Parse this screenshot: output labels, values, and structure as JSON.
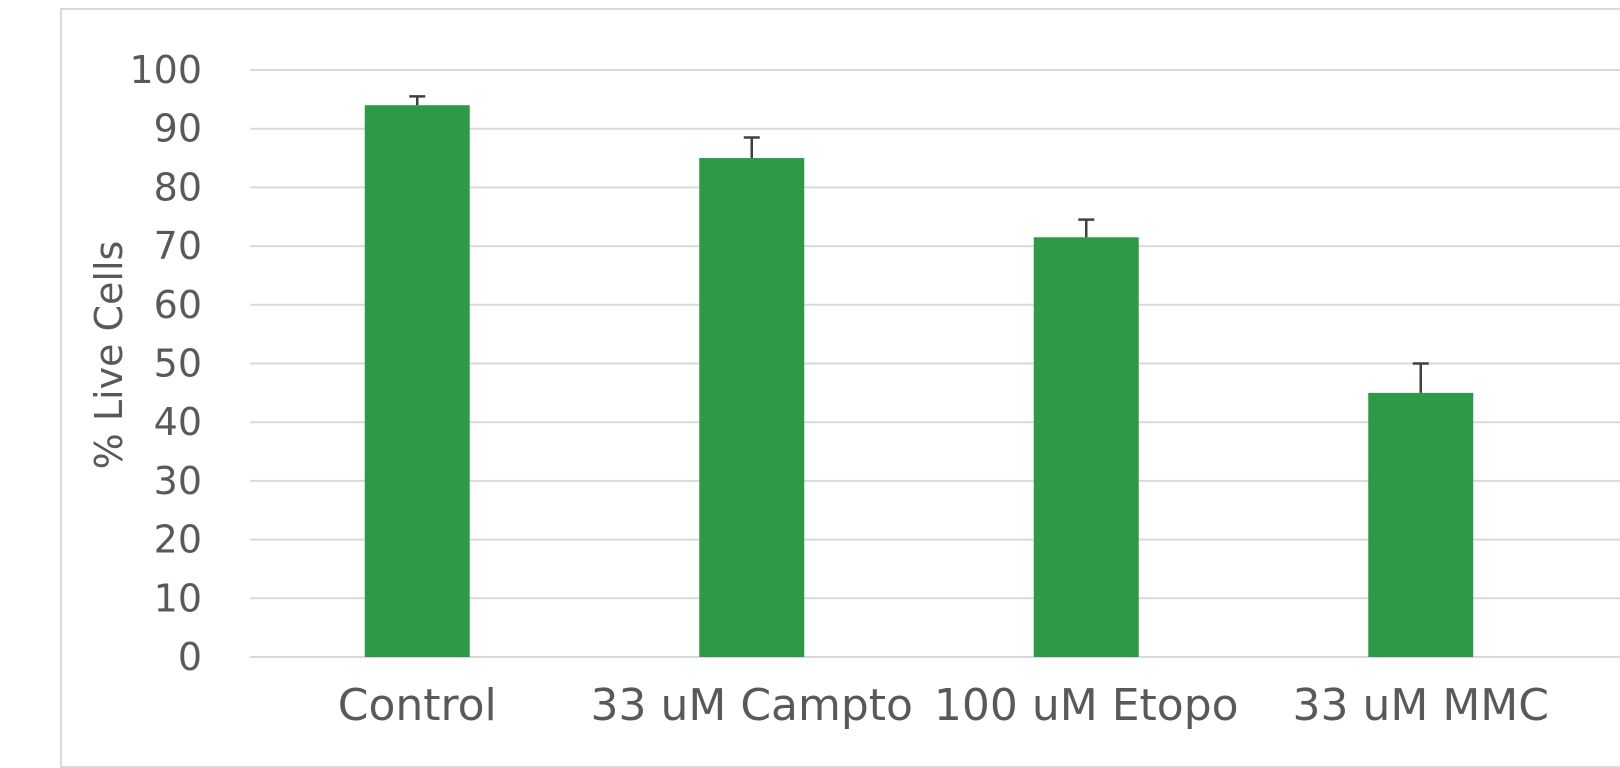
{
  "chart_data": {
    "type": "bar",
    "title": "",
    "xlabel": "",
    "ylabel": "% Live Cells",
    "categories": [
      "Control",
      "33 uM Campto",
      "100 uM Etopo",
      "33 uM MMC"
    ],
    "values": [
      94,
      85,
      71.5,
      45
    ],
    "error_plus": [
      1.5,
      3.5,
      3,
      5
    ],
    "ylim": [
      0,
      100
    ],
    "yticks": [
      0,
      10,
      20,
      30,
      40,
      50,
      60,
      70,
      80,
      90,
      100
    ],
    "grid": true,
    "legend": "none",
    "bar_color": "#2e9a46",
    "error_bar_color": "#404040",
    "grid_color": "#d9d9d9",
    "text_color": "#595959"
  }
}
